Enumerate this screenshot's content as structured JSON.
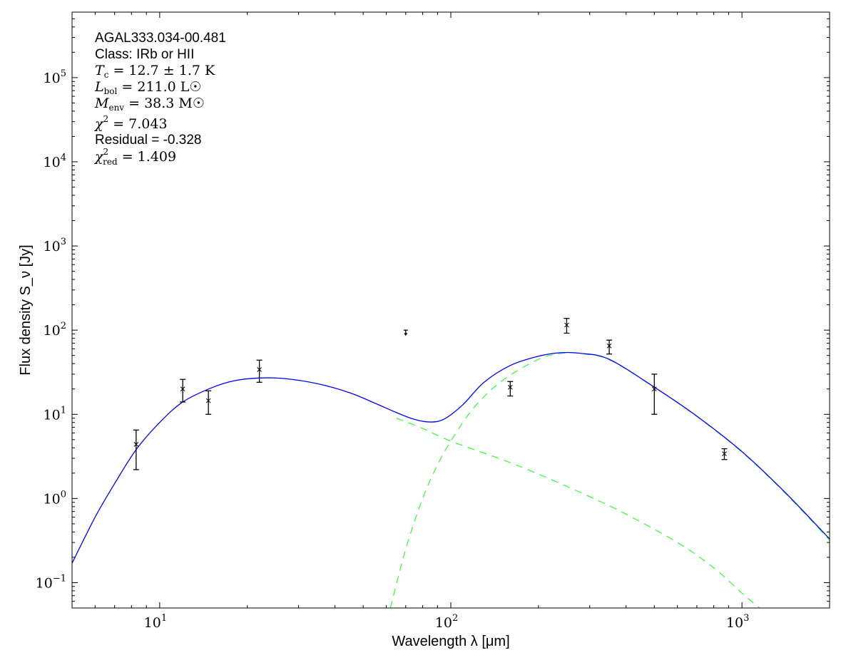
{
  "chart_data": {
    "type": "scatter",
    "xlabel": "Wavelength λ [μm]",
    "ylabel": "Flux density S_ν [Jy]",
    "xscale": "log",
    "yscale": "log",
    "xlim": [
      5,
      2000
    ],
    "ylim": [
      0.05,
      600000
    ],
    "grid": false,
    "xticks": [
      {
        "v": 10,
        "label": "10",
        "exp": "1"
      },
      {
        "v": 100,
        "label": "10",
        "exp": "2"
      },
      {
        "v": 1000,
        "label": "10",
        "exp": "3"
      }
    ],
    "yticks": [
      {
        "v": 0.1,
        "label": "10",
        "exp": "−1"
      },
      {
        "v": 1,
        "label": "10",
        "exp": "0"
      },
      {
        "v": 10,
        "label": "10",
        "exp": "1"
      },
      {
        "v": 100,
        "label": "10",
        "exp": "2"
      },
      {
        "v": 1000,
        "label": "10",
        "exp": "3"
      },
      {
        "v": 10000,
        "label": "10",
        "exp": "4"
      },
      {
        "v": 100000,
        "label": "10",
        "exp": "5"
      }
    ],
    "annotations": {
      "source": "AGAL333.034-00.481",
      "class": "Class: IRb or HII",
      "tc": {
        "sym": "T",
        "sub": "c",
        "val": " = 12.7 ± 1.7 K"
      },
      "lbol": {
        "sym": "L",
        "sub": "bol",
        "val": " = 211.0 L☉"
      },
      "menv": {
        "sym": "M",
        "sub": "env",
        "val": " = 38.3 M☉"
      },
      "chi2": {
        "sym": "χ",
        "sup": "2",
        "val": " = 7.043"
      },
      "residual": "Residual = -0.328",
      "chi2red": {
        "sym": "χ",
        "sup": "2",
        "sub": "red",
        "val": " = 1.409"
      }
    },
    "points": [
      {
        "x": 8.3,
        "y": 4.4,
        "lo": 2.2,
        "hi": 6.5
      },
      {
        "x": 12,
        "y": 20,
        "lo": 14,
        "hi": 26
      },
      {
        "x": 14.7,
        "y": 14.5,
        "lo": 10,
        "hi": 19
      },
      {
        "x": 22,
        "y": 34,
        "lo": 24,
        "hi": 44
      },
      {
        "x": 160,
        "y": 21,
        "lo": 16.5,
        "hi": 24.5
      },
      {
        "x": 250,
        "y": 115,
        "lo": 92,
        "hi": 138
      },
      {
        "x": 350,
        "y": 65,
        "lo": 52,
        "hi": 76
      },
      {
        "x": 500,
        "y": 20,
        "lo": 10,
        "hi": 30
      },
      {
        "x": 870,
        "y": 3.4,
        "lo": 2.9,
        "hi": 3.9
      }
    ],
    "upper_limits": [
      {
        "x": 70,
        "y": 100,
        "to": 87
      }
    ],
    "series": [
      {
        "style": "solid",
        "color": "#0000ff",
        "x": [
          5,
          6,
          7,
          8.3,
          10,
          12,
          15,
          18,
          22,
          27,
          35,
          45,
          55,
          65,
          75,
          85,
          95,
          110,
          130,
          160,
          200,
          240,
          280,
          350,
          500,
          700,
          1000,
          1400,
          2000
        ],
        "y": [
          0.17,
          0.6,
          1.5,
          3.8,
          8,
          14,
          20.5,
          25,
          27,
          26.5,
          23,
          18,
          13.5,
          10.5,
          8.7,
          8.1,
          8.8,
          13,
          24,
          38,
          49,
          54,
          53,
          45,
          21,
          9.5,
          3.6,
          1.2,
          0.33
        ]
      },
      {
        "style": "dashed",
        "color": "#33ff33",
        "x": [
          65,
          80,
          100,
          150,
          200,
          300,
          400,
          600,
          800,
          1000,
          1150
        ],
        "y": [
          9,
          6.8,
          4.8,
          2.9,
          1.95,
          1.05,
          0.65,
          0.3,
          0.15,
          0.075,
          0.05
        ]
      },
      {
        "style": "dashed",
        "color": "#33ff33",
        "x": [
          62,
          70,
          80,
          90,
          100,
          120,
          150,
          200,
          240,
          280,
          350,
          500,
          700,
          1000,
          1400,
          2000
        ],
        "y": [
          0.05,
          0.25,
          1.0,
          2.5,
          4.8,
          12,
          25,
          45,
          53,
          52.5,
          44.5,
          21,
          9.4,
          3.55,
          1.18,
          0.32
        ]
      }
    ]
  }
}
